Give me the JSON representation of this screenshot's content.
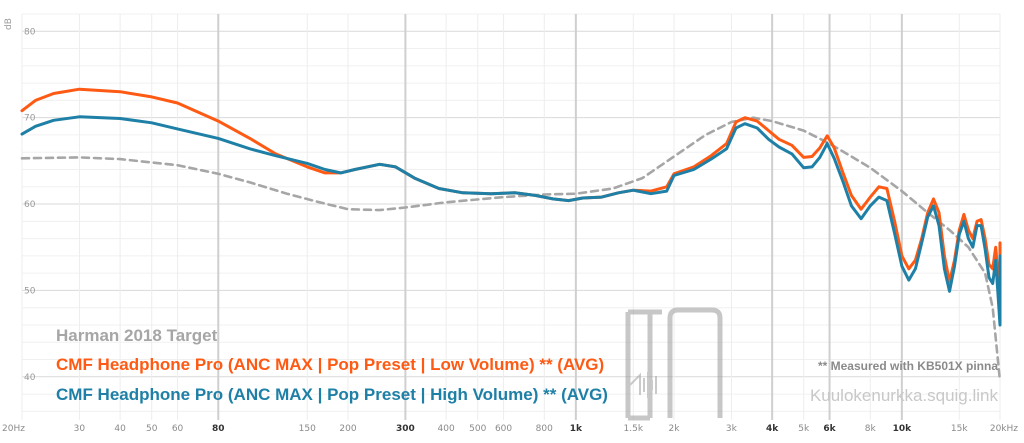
{
  "chart_data": {
    "type": "line",
    "title": "",
    "xlabel": "",
    "ylabel": "dB",
    "x_scale": "log",
    "xlim": [
      20,
      20000
    ],
    "ylim": [
      35,
      82
    ],
    "grid": true,
    "y_ticks": [
      40,
      50,
      60,
      70,
      80
    ],
    "x_ticks": [
      {
        "f": 20,
        "label": "20Hz",
        "major": false
      },
      {
        "f": 30,
        "label": "30",
        "major": false
      },
      {
        "f": 40,
        "label": "40",
        "major": false
      },
      {
        "f": 50,
        "label": "50",
        "major": false
      },
      {
        "f": 60,
        "label": "60",
        "major": false
      },
      {
        "f": 80,
        "label": "80",
        "major": true
      },
      {
        "f": 150,
        "label": "150",
        "major": false
      },
      {
        "f": 200,
        "label": "200",
        "major": false
      },
      {
        "f": 300,
        "label": "300",
        "major": true
      },
      {
        "f": 400,
        "label": "400",
        "major": false
      },
      {
        "f": 500,
        "label": "500",
        "major": false
      },
      {
        "f": 600,
        "label": "600",
        "major": false
      },
      {
        "f": 800,
        "label": "800",
        "major": false
      },
      {
        "f": 1000,
        "label": "1k",
        "major": true
      },
      {
        "f": 1500,
        "label": "1.5k",
        "major": false
      },
      {
        "f": 2000,
        "label": "2k",
        "major": false
      },
      {
        "f": 3000,
        "label": "3k",
        "major": false
      },
      {
        "f": 4000,
        "label": "4k",
        "major": true
      },
      {
        "f": 5000,
        "label": "5k",
        "major": false
      },
      {
        "f": 6000,
        "label": "6k",
        "major": true
      },
      {
        "f": 8000,
        "label": "8k",
        "major": false
      },
      {
        "f": 10000,
        "label": "10k",
        "major": true
      },
      {
        "f": 15000,
        "label": "15k",
        "major": false
      },
      {
        "f": 20000,
        "label": "20kHz",
        "major": false
      }
    ],
    "major_gridlines": [
      80,
      300,
      1000,
      4000,
      6000,
      10000
    ],
    "series": [
      {
        "name": "Harman 2018 Target",
        "color": "#a6a6a6",
        "dashed": true,
        "points": [
          [
            20,
            65.3
          ],
          [
            30,
            65.4
          ],
          [
            40,
            65.2
          ],
          [
            60,
            64.5
          ],
          [
            80,
            63.5
          ],
          [
            100,
            62.5
          ],
          [
            130,
            61.2
          ],
          [
            160,
            60.3
          ],
          [
            200,
            59.4
          ],
          [
            250,
            59.3
          ],
          [
            300,
            59.6
          ],
          [
            400,
            60.2
          ],
          [
            600,
            60.8
          ],
          [
            800,
            61.1
          ],
          [
            1000,
            61.2
          ],
          [
            1300,
            61.8
          ],
          [
            1600,
            63
          ],
          [
            2000,
            65.5
          ],
          [
            2500,
            68
          ],
          [
            3000,
            69.5
          ],
          [
            3500,
            70
          ],
          [
            4000,
            69.6
          ],
          [
            5000,
            68.5
          ],
          [
            6000,
            67
          ],
          [
            7000,
            65.5
          ],
          [
            8000,
            64.2
          ],
          [
            10000,
            61.5
          ],
          [
            12000,
            59
          ],
          [
            14000,
            57
          ],
          [
            16000,
            55
          ],
          [
            18000,
            52
          ],
          [
            19000,
            48
          ],
          [
            20000,
            39.5
          ]
        ]
      },
      {
        "name": "CMF Headphone Pro (ANC MAX | Pop Preset | Low Volume) ** (AVG)",
        "color": "#ff5a14",
        "dashed": false,
        "points": [
          [
            20,
            70.8
          ],
          [
            22,
            72
          ],
          [
            25,
            72.8
          ],
          [
            30,
            73.3
          ],
          [
            40,
            73
          ],
          [
            50,
            72.4
          ],
          [
            60,
            71.7
          ],
          [
            80,
            69.6
          ],
          [
            100,
            67.6
          ],
          [
            120,
            65.8
          ],
          [
            150,
            64.3
          ],
          [
            170,
            63.6
          ],
          [
            190,
            63.6
          ],
          [
            210,
            64
          ],
          [
            250,
            64.6
          ],
          [
            280,
            64.3
          ],
          [
            320,
            63
          ],
          [
            380,
            61.8
          ],
          [
            450,
            61.3
          ],
          [
            550,
            61.2
          ],
          [
            650,
            61.3
          ],
          [
            750,
            61
          ],
          [
            850,
            60.6
          ],
          [
            950,
            60.4
          ],
          [
            1050,
            60.7
          ],
          [
            1200,
            60.8
          ],
          [
            1350,
            61.3
          ],
          [
            1500,
            61.6
          ],
          [
            1700,
            61.5
          ],
          [
            1900,
            62
          ],
          [
            2000,
            63.5
          ],
          [
            2300,
            64.3
          ],
          [
            2600,
            65.6
          ],
          [
            2900,
            67
          ],
          [
            3100,
            69.5
          ],
          [
            3300,
            70
          ],
          [
            3600,
            69.6
          ],
          [
            3900,
            68.5
          ],
          [
            4200,
            67.5
          ],
          [
            4600,
            66.8
          ],
          [
            5000,
            65.4
          ],
          [
            5300,
            65.5
          ],
          [
            5600,
            66.5
          ],
          [
            5900,
            67.9
          ],
          [
            6200,
            66.5
          ],
          [
            6600,
            63.6
          ],
          [
            7000,
            61
          ],
          [
            7500,
            59.4
          ],
          [
            8000,
            60.8
          ],
          [
            8500,
            62
          ],
          [
            9000,
            61.8
          ],
          [
            9500,
            58
          ],
          [
            10000,
            54
          ],
          [
            10500,
            52.5
          ],
          [
            11000,
            53.5
          ],
          [
            11500,
            56
          ],
          [
            12000,
            59
          ],
          [
            12500,
            60.6
          ],
          [
            13000,
            59
          ],
          [
            13500,
            54
          ],
          [
            14000,
            51
          ],
          [
            14500,
            53.5
          ],
          [
            15000,
            57
          ],
          [
            15500,
            58.8
          ],
          [
            16000,
            57
          ],
          [
            16500,
            56
          ],
          [
            17000,
            58
          ],
          [
            17500,
            58.2
          ],
          [
            18000,
            56
          ],
          [
            18500,
            53
          ],
          [
            19000,
            52.5
          ],
          [
            19400,
            55
          ],
          [
            19800,
            51
          ],
          [
            20000,
            47.2
          ],
          [
            20000,
            50
          ],
          [
            20000,
            55.5
          ]
        ]
      },
      {
        "name": "CMF Headphone Pro (ANC MAX | Pop Preset | High Volume) ** (AVG)",
        "color": "#1e80a6",
        "dashed": false,
        "points": [
          [
            20,
            68.1
          ],
          [
            22,
            69
          ],
          [
            25,
            69.7
          ],
          [
            30,
            70.1
          ],
          [
            40,
            69.9
          ],
          [
            50,
            69.4
          ],
          [
            60,
            68.7
          ],
          [
            80,
            67.6
          ],
          [
            100,
            66.4
          ],
          [
            120,
            65.6
          ],
          [
            150,
            64.7
          ],
          [
            170,
            64
          ],
          [
            190,
            63.6
          ],
          [
            210,
            64
          ],
          [
            250,
            64.6
          ],
          [
            280,
            64.3
          ],
          [
            320,
            63
          ],
          [
            380,
            61.8
          ],
          [
            450,
            61.3
          ],
          [
            550,
            61.2
          ],
          [
            650,
            61.3
          ],
          [
            750,
            61
          ],
          [
            850,
            60.6
          ],
          [
            950,
            60.4
          ],
          [
            1050,
            60.7
          ],
          [
            1200,
            60.8
          ],
          [
            1350,
            61.3
          ],
          [
            1500,
            61.6
          ],
          [
            1700,
            61.2
          ],
          [
            1900,
            61.5
          ],
          [
            2000,
            63.3
          ],
          [
            2300,
            64
          ],
          [
            2600,
            65.2
          ],
          [
            2900,
            66.4
          ],
          [
            3100,
            68.8
          ],
          [
            3300,
            69.3
          ],
          [
            3600,
            68.8
          ],
          [
            3900,
            67.5
          ],
          [
            4200,
            66.6
          ],
          [
            4600,
            65.8
          ],
          [
            5000,
            64.2
          ],
          [
            5300,
            64.3
          ],
          [
            5600,
            65.4
          ],
          [
            5900,
            67
          ],
          [
            6200,
            65.3
          ],
          [
            6600,
            62.6
          ],
          [
            7000,
            59.8
          ],
          [
            7500,
            58.3
          ],
          [
            8000,
            59.8
          ],
          [
            8500,
            60.8
          ],
          [
            9000,
            60.4
          ],
          [
            9500,
            56.6
          ],
          [
            10000,
            52.8
          ],
          [
            10500,
            51.2
          ],
          [
            11000,
            52.5
          ],
          [
            11500,
            55.5
          ],
          [
            12000,
            58.5
          ],
          [
            12500,
            59.8
          ],
          [
            13000,
            57.5
          ],
          [
            13500,
            52.5
          ],
          [
            14000,
            49.9
          ],
          [
            14500,
            52.8
          ],
          [
            15000,
            56.5
          ],
          [
            15500,
            58
          ],
          [
            16000,
            56
          ],
          [
            16500,
            55
          ],
          [
            17000,
            57.5
          ],
          [
            17500,
            57.5
          ],
          [
            18000,
            54.8
          ],
          [
            18500,
            51.5
          ],
          [
            19000,
            50.8
          ],
          [
            19400,
            53.5
          ],
          [
            19800,
            48.5
          ],
          [
            20000,
            46
          ],
          [
            20000,
            50
          ],
          [
            20000,
            54
          ]
        ]
      }
    ],
    "legend_labels": [
      "Harman 2018 Target",
      "CMF Headphone Pro (ANC MAX | Pop Preset | Low Volume) ** (AVG)",
      "CMF Headphone Pro (ANC MAX | Pop Preset | High Volume) ** (AVG)"
    ],
    "legend_placement": "bottom-left",
    "annotations": {
      "note": "** Measured with KB501X pinna",
      "site": "Kuulokenurkka.squig.link",
      "watermark": "KN"
    }
  }
}
